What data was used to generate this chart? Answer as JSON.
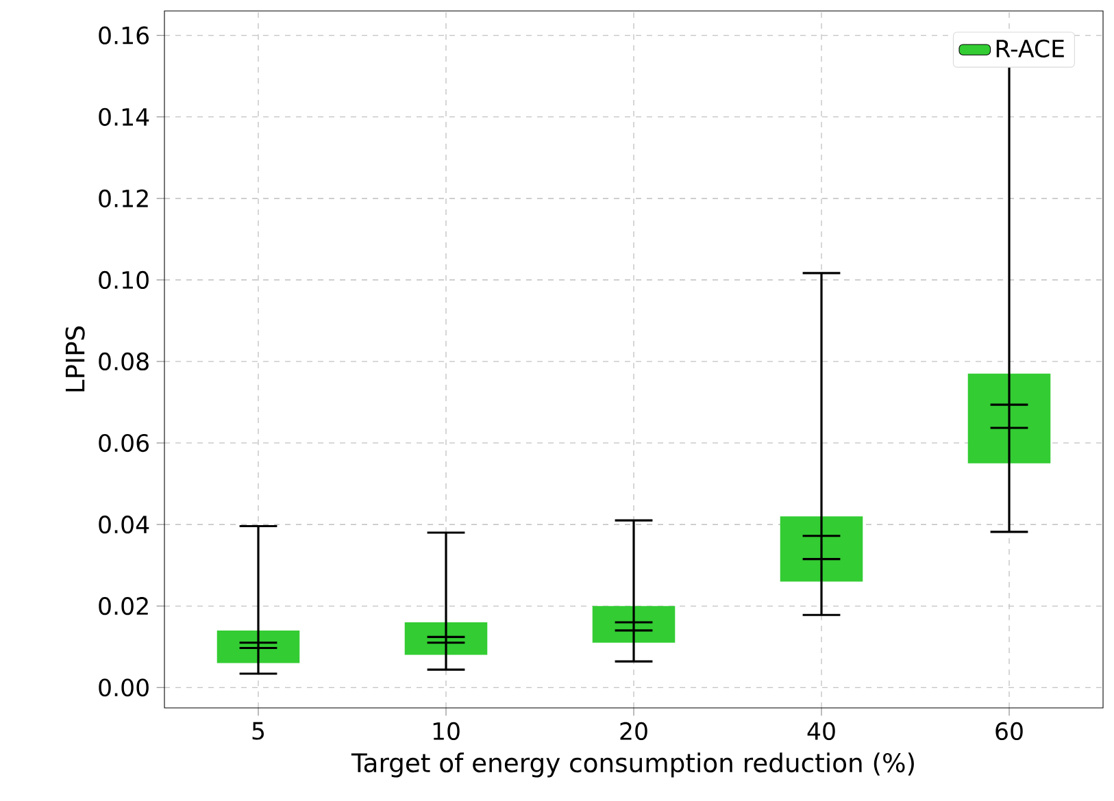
{
  "chart_data": {
    "type": "box",
    "xlabel": "Target of energy consumption reduction (%)",
    "ylabel": "LPIPS",
    "categories": [
      "5",
      "10",
      "20",
      "40",
      "60"
    ],
    "ylim": [
      -0.005,
      0.166
    ],
    "yticks": [
      {
        "value": 0,
        "label": "0.00"
      },
      {
        "value": 0.02,
        "label": "0.02"
      },
      {
        "value": 0.04,
        "label": "0.04"
      },
      {
        "value": 0.06,
        "label": "0.06"
      },
      {
        "value": 0.08,
        "label": "0.08"
      },
      {
        "value": 0.1,
        "label": "0.10"
      },
      {
        "value": 0.12,
        "label": "0.12"
      },
      {
        "value": 0.14,
        "label": "0.14"
      },
      {
        "value": 0.16,
        "label": "0.16"
      }
    ],
    "grid": true,
    "legend": "top right",
    "series": [
      {
        "name": "R-ACE",
        "color": "#33cc33",
        "boxes": [
          {
            "low": 0.0034,
            "q1": 0.006,
            "median": 0.0097,
            "q3": 0.014,
            "high": 0.0396,
            "mean": 0.011
          },
          {
            "low": 0.0044,
            "q1": 0.008,
            "median": 0.011,
            "q3": 0.016,
            "high": 0.038,
            "mean": 0.0124
          },
          {
            "low": 0.0064,
            "q1": 0.011,
            "median": 0.014,
            "q3": 0.02,
            "high": 0.041,
            "mean": 0.016
          },
          {
            "low": 0.0178,
            "q1": 0.026,
            "median": 0.0315,
            "q3": 0.042,
            "high": 0.1017,
            "mean": 0.0372
          },
          {
            "low": 0.0382,
            "q1": 0.055,
            "median": 0.0637,
            "q3": 0.077,
            "high": 0.159,
            "mean": 0.0694
          }
        ]
      }
    ]
  }
}
